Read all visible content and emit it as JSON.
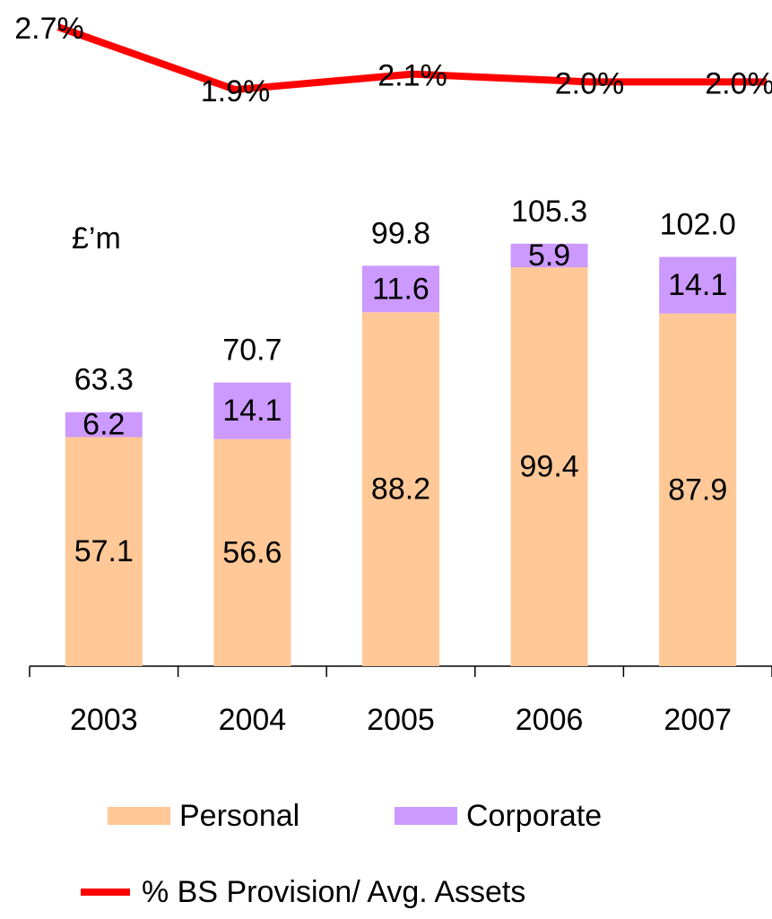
{
  "chart_data": {
    "type": "bar",
    "stacked": true,
    "unit_label": "£’m",
    "categories": [
      "2003",
      "2004",
      "2005",
      "2006",
      "2007"
    ],
    "series": [
      {
        "name": "Personal",
        "color": "#ffc896",
        "values": [
          57.1,
          56.6,
          88.2,
          99.4,
          87.9
        ]
      },
      {
        "name": "Corporate",
        "color": "#cc99ff",
        "values": [
          6.2,
          14.1,
          11.6,
          5.9,
          14.1
        ]
      },
      {
        "name": "% BS Provision/ Avg. Assets",
        "type": "line",
        "axis": "y2",
        "color": "#ff0000",
        "values": [
          2.7,
          1.9,
          2.1,
          2.0,
          2.0
        ],
        "value_labels": [
          "2.7%",
          "1.9%",
          "2.1%",
          "2.0%",
          "2.0%"
        ]
      }
    ],
    "totals": [
      63.3,
      70.7,
      99.8,
      105.3,
      102.0
    ],
    "totals_labels": [
      "63.3",
      "70.7",
      "99.8",
      "105.3",
      "102.0"
    ],
    "ylim": [
      0,
      120
    ],
    "y2lim": [
      1.5,
      3.0
    ]
  }
}
